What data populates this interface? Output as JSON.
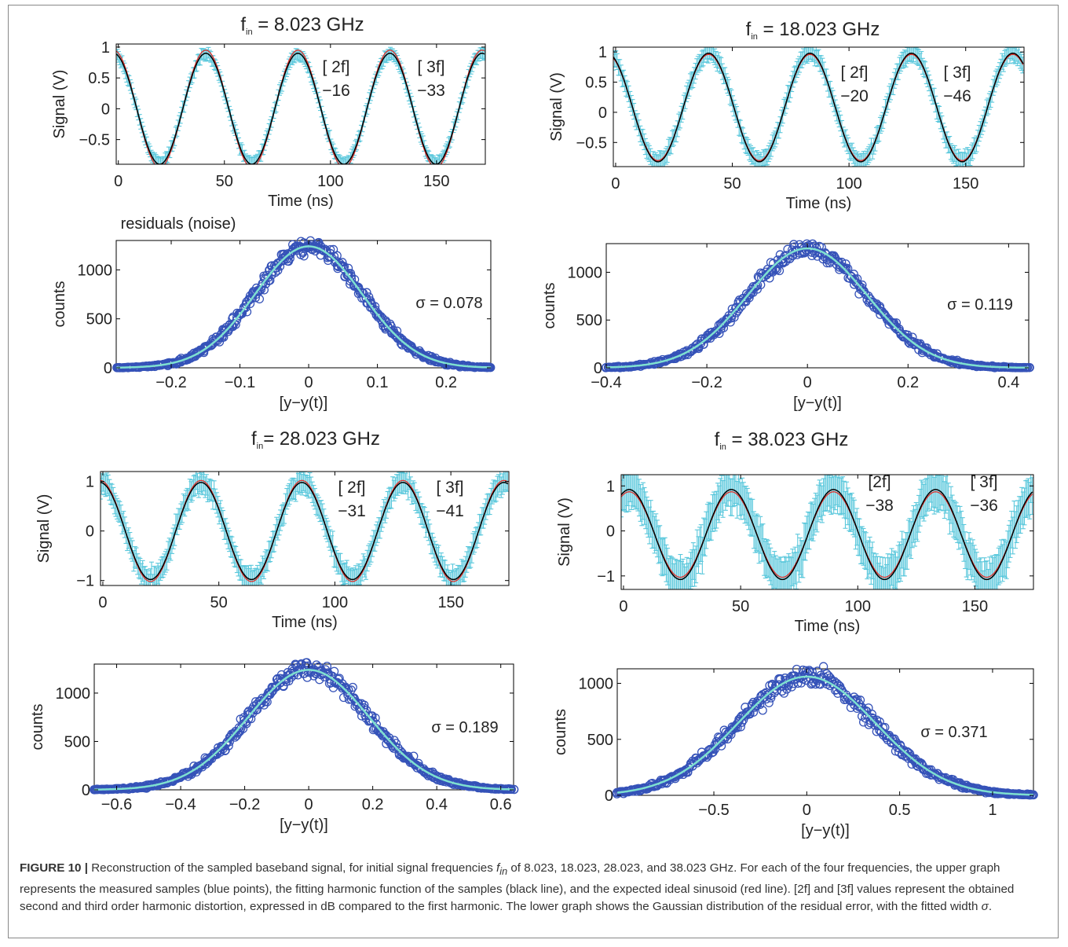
{
  "figure_label": "FIGURE 10 |",
  "caption_parts": {
    "p1": " Reconstruction of the sampled baseband signal, for initial signal frequencies ",
    "fin_f": "f",
    "fin_sub": "in",
    "p2": " of 8.023, 18.023, 28.023, and 38.023 GHz. For each of the four frequencies, the upper graph represents the measured samples (blue points), the fitting harmonic function of the samples (black line), and the expected ideal sinusoid (red line). [2f] and [3f] values represent the obtained second and third order harmonic distortion, expressed in dB compared to the first harmonic. The lower graph shows the Gaussian distribution of the residual error, with the fitted width ",
    "sigma": "σ",
    "p3": "."
  },
  "residuals_label": "residuals (noise)",
  "colors": {
    "samples": "#5bc8dc",
    "fit": "#000000",
    "ideal": "#e0302a",
    "hist": "#3552b8",
    "gauss": "#7ee0d0"
  },
  "chart_data": [
    {
      "type": "line",
      "title": "f_in = 8.023 GHz",
      "title_main": "f",
      "title_sub": "in",
      "title_rest": " = 8.023 GHz",
      "xlabel": "Time (ns)",
      "ylabel": "Signal (V)",
      "xlim": [
        -1,
        173
      ],
      "ylim": [
        -0.9,
        1.05
      ],
      "xticks": [
        0,
        50,
        100,
        150
      ],
      "yticks": [
        -0.5,
        0,
        0.5,
        1
      ],
      "ytick_labels": [
        "-0.5",
        "0",
        "0.5",
        "1"
      ],
      "freq_ghz_baseband": 0.02304,
      "amplitude": 0.9,
      "offset": 0.0,
      "phase_deg": 18,
      "sample_amp": 0.88,
      "ideal_amplitude": 0.95,
      "noise_sigma": 0.078,
      "h2_label": "[ 2f]",
      "h2_value": "−16",
      "h3_label": "[ 3f]",
      "h3_value": "−33",
      "series": [
        {
          "name": "samples"
        },
        {
          "name": "fit"
        },
        {
          "name": "ideal"
        }
      ]
    },
    {
      "type": "line",
      "title": "f_in = 18.023 GHz",
      "title_main": "f",
      "title_sub": "in",
      "title_rest": " = 18.023 GHz",
      "xlabel": "Time (ns)",
      "ylabel": "Signal (V)",
      "xlim": [
        -1,
        175
      ],
      "ylim": [
        -0.9,
        1.08
      ],
      "xticks": [
        0,
        50,
        100,
        150
      ],
      "yticks": [
        -0.5,
        0,
        0.5,
        1
      ],
      "ytick_labels": [
        "-0.5",
        "0",
        "0.5",
        "1"
      ],
      "freq_ghz_baseband": 0.02301,
      "amplitude": 0.9,
      "offset": 0.08,
      "phase_deg": 30,
      "sample_amp": 0.9,
      "ideal_amplitude": 0.88,
      "noise_sigma": 0.119,
      "h2_label": "[ 2f]",
      "h2_value": "−20",
      "h3_label": "[ 3f]",
      "h3_value": "−46",
      "series": [
        {
          "name": "samples"
        },
        {
          "name": "fit"
        },
        {
          "name": "ideal"
        }
      ]
    },
    {
      "type": "line",
      "title": "f_in= 28.023 GHz",
      "title_main": "f",
      "title_sub": "in",
      "title_rest": "= 28.023 GHz",
      "xlabel": "Time (ns)",
      "ylabel": "Signal (V)",
      "xlim": [
        -1,
        175
      ],
      "ylim": [
        -1.1,
        1.2
      ],
      "xticks": [
        0,
        50,
        100,
        150
      ],
      "yticks": [
        -1,
        0,
        1
      ],
      "ytick_labels": [
        "-1",
        "0",
        "1"
      ],
      "freq_ghz_baseband": 0.02298,
      "amplitude": 0.98,
      "offset": 0.0,
      "phase_deg": 10,
      "sample_amp": 0.98,
      "ideal_amplitude": 1.02,
      "noise_sigma": 0.189,
      "h2_label": "[ 2f]",
      "h2_value": "−31",
      "h3_label": "[ 3f]",
      "h3_value": "−41",
      "series": [
        {
          "name": "samples"
        },
        {
          "name": "fit"
        },
        {
          "name": "ideal"
        }
      ]
    },
    {
      "type": "line",
      "title": "f_in = 38.023 GHz",
      "title_main": "f",
      "title_sub": "in",
      "title_rest": " = 38.023 GHz",
      "xlabel": "Time (ns)",
      "ylabel": "Signal (V)",
      "xlim": [
        -1,
        175
      ],
      "ylim": [
        -1.3,
        1.25
      ],
      "xticks": [
        0,
        50,
        100,
        150
      ],
      "yticks": [
        -1,
        0,
        1
      ],
      "ytick_labels": [
        "-1",
        "0",
        "1"
      ],
      "freq_ghz_baseband": 0.02293,
      "amplitude": 1.0,
      "offset": -0.08,
      "phase_deg": -20,
      "sample_amp": 1.0,
      "ideal_amplitude": 0.95,
      "noise_sigma": 0.371,
      "h2_label": "[2f]",
      "h2_value": "−38",
      "h3_label": "[ 3f]",
      "h3_value": "−36",
      "series": [
        {
          "name": "samples"
        },
        {
          "name": "fit"
        },
        {
          "name": "ideal"
        }
      ]
    },
    {
      "type": "scatter",
      "title": "",
      "xlabel": "[y−y(t)]",
      "ylabel": "counts",
      "xlim": [
        -0.28,
        0.265
      ],
      "ylim": [
        0,
        1300
      ],
      "xticks": [
        -0.2,
        -0.1,
        0,
        0.1,
        0.2
      ],
      "xtick_labels": [
        "−0.2",
        "−0.1",
        "0",
        "0.1",
        "0.2"
      ],
      "yticks": [
        0,
        500,
        1000
      ],
      "sigma": 0.078,
      "peak": 1240,
      "sigma_label": "σ = 0.078",
      "series": [
        {
          "name": "histogram"
        },
        {
          "name": "gaussian fit"
        }
      ]
    },
    {
      "type": "scatter",
      "title": "",
      "xlabel": "[y−y(t)]",
      "ylabel": "counts",
      "xlim": [
        -0.4,
        0.44
      ],
      "ylim": [
        0,
        1300
      ],
      "xticks": [
        -0.4,
        -0.2,
        0,
        0.2,
        0.4
      ],
      "xtick_labels": [
        "−0.4",
        "−0.2",
        "0",
        "0.2",
        "0.4"
      ],
      "yticks": [
        0,
        500,
        1000
      ],
      "sigma": 0.119,
      "peak": 1250,
      "sigma_label": "σ = 0.119",
      "series": [
        {
          "name": "histogram"
        },
        {
          "name": "gaussian fit"
        }
      ]
    },
    {
      "type": "scatter",
      "title": "",
      "xlabel": "[y−y(t)]",
      "ylabel": "counts",
      "xlim": [
        -0.67,
        0.64
      ],
      "ylim": [
        0,
        1300
      ],
      "xticks": [
        -0.6,
        -0.4,
        -0.2,
        0,
        0.2,
        0.4,
        0.6
      ],
      "xtick_labels": [
        "−0.6",
        "−0.4",
        "−0.2",
        "0",
        "0.2",
        "0.4",
        "0.6"
      ],
      "yticks": [
        0,
        500,
        1000
      ],
      "sigma": 0.189,
      "peak": 1240,
      "sigma_label": "σ = 0.189",
      "series": [
        {
          "name": "histogram"
        },
        {
          "name": "gaussian fit"
        }
      ]
    },
    {
      "type": "scatter",
      "title": "",
      "xlabel": "[y−y(t)]",
      "ylabel": "counts",
      "xlim": [
        -1.02,
        1.22
      ],
      "ylim": [
        0,
        1130
      ],
      "xticks": [
        -0.5,
        0,
        0.5,
        1
      ],
      "xtick_labels": [
        "−0.5",
        "0",
        "0.5",
        "1"
      ],
      "yticks": [
        0,
        500,
        1000
      ],
      "sigma": 0.371,
      "peak": 1060,
      "sigma_label": "σ = 0.371",
      "series": [
        {
          "name": "histogram"
        },
        {
          "name": "gaussian fit"
        }
      ]
    }
  ]
}
